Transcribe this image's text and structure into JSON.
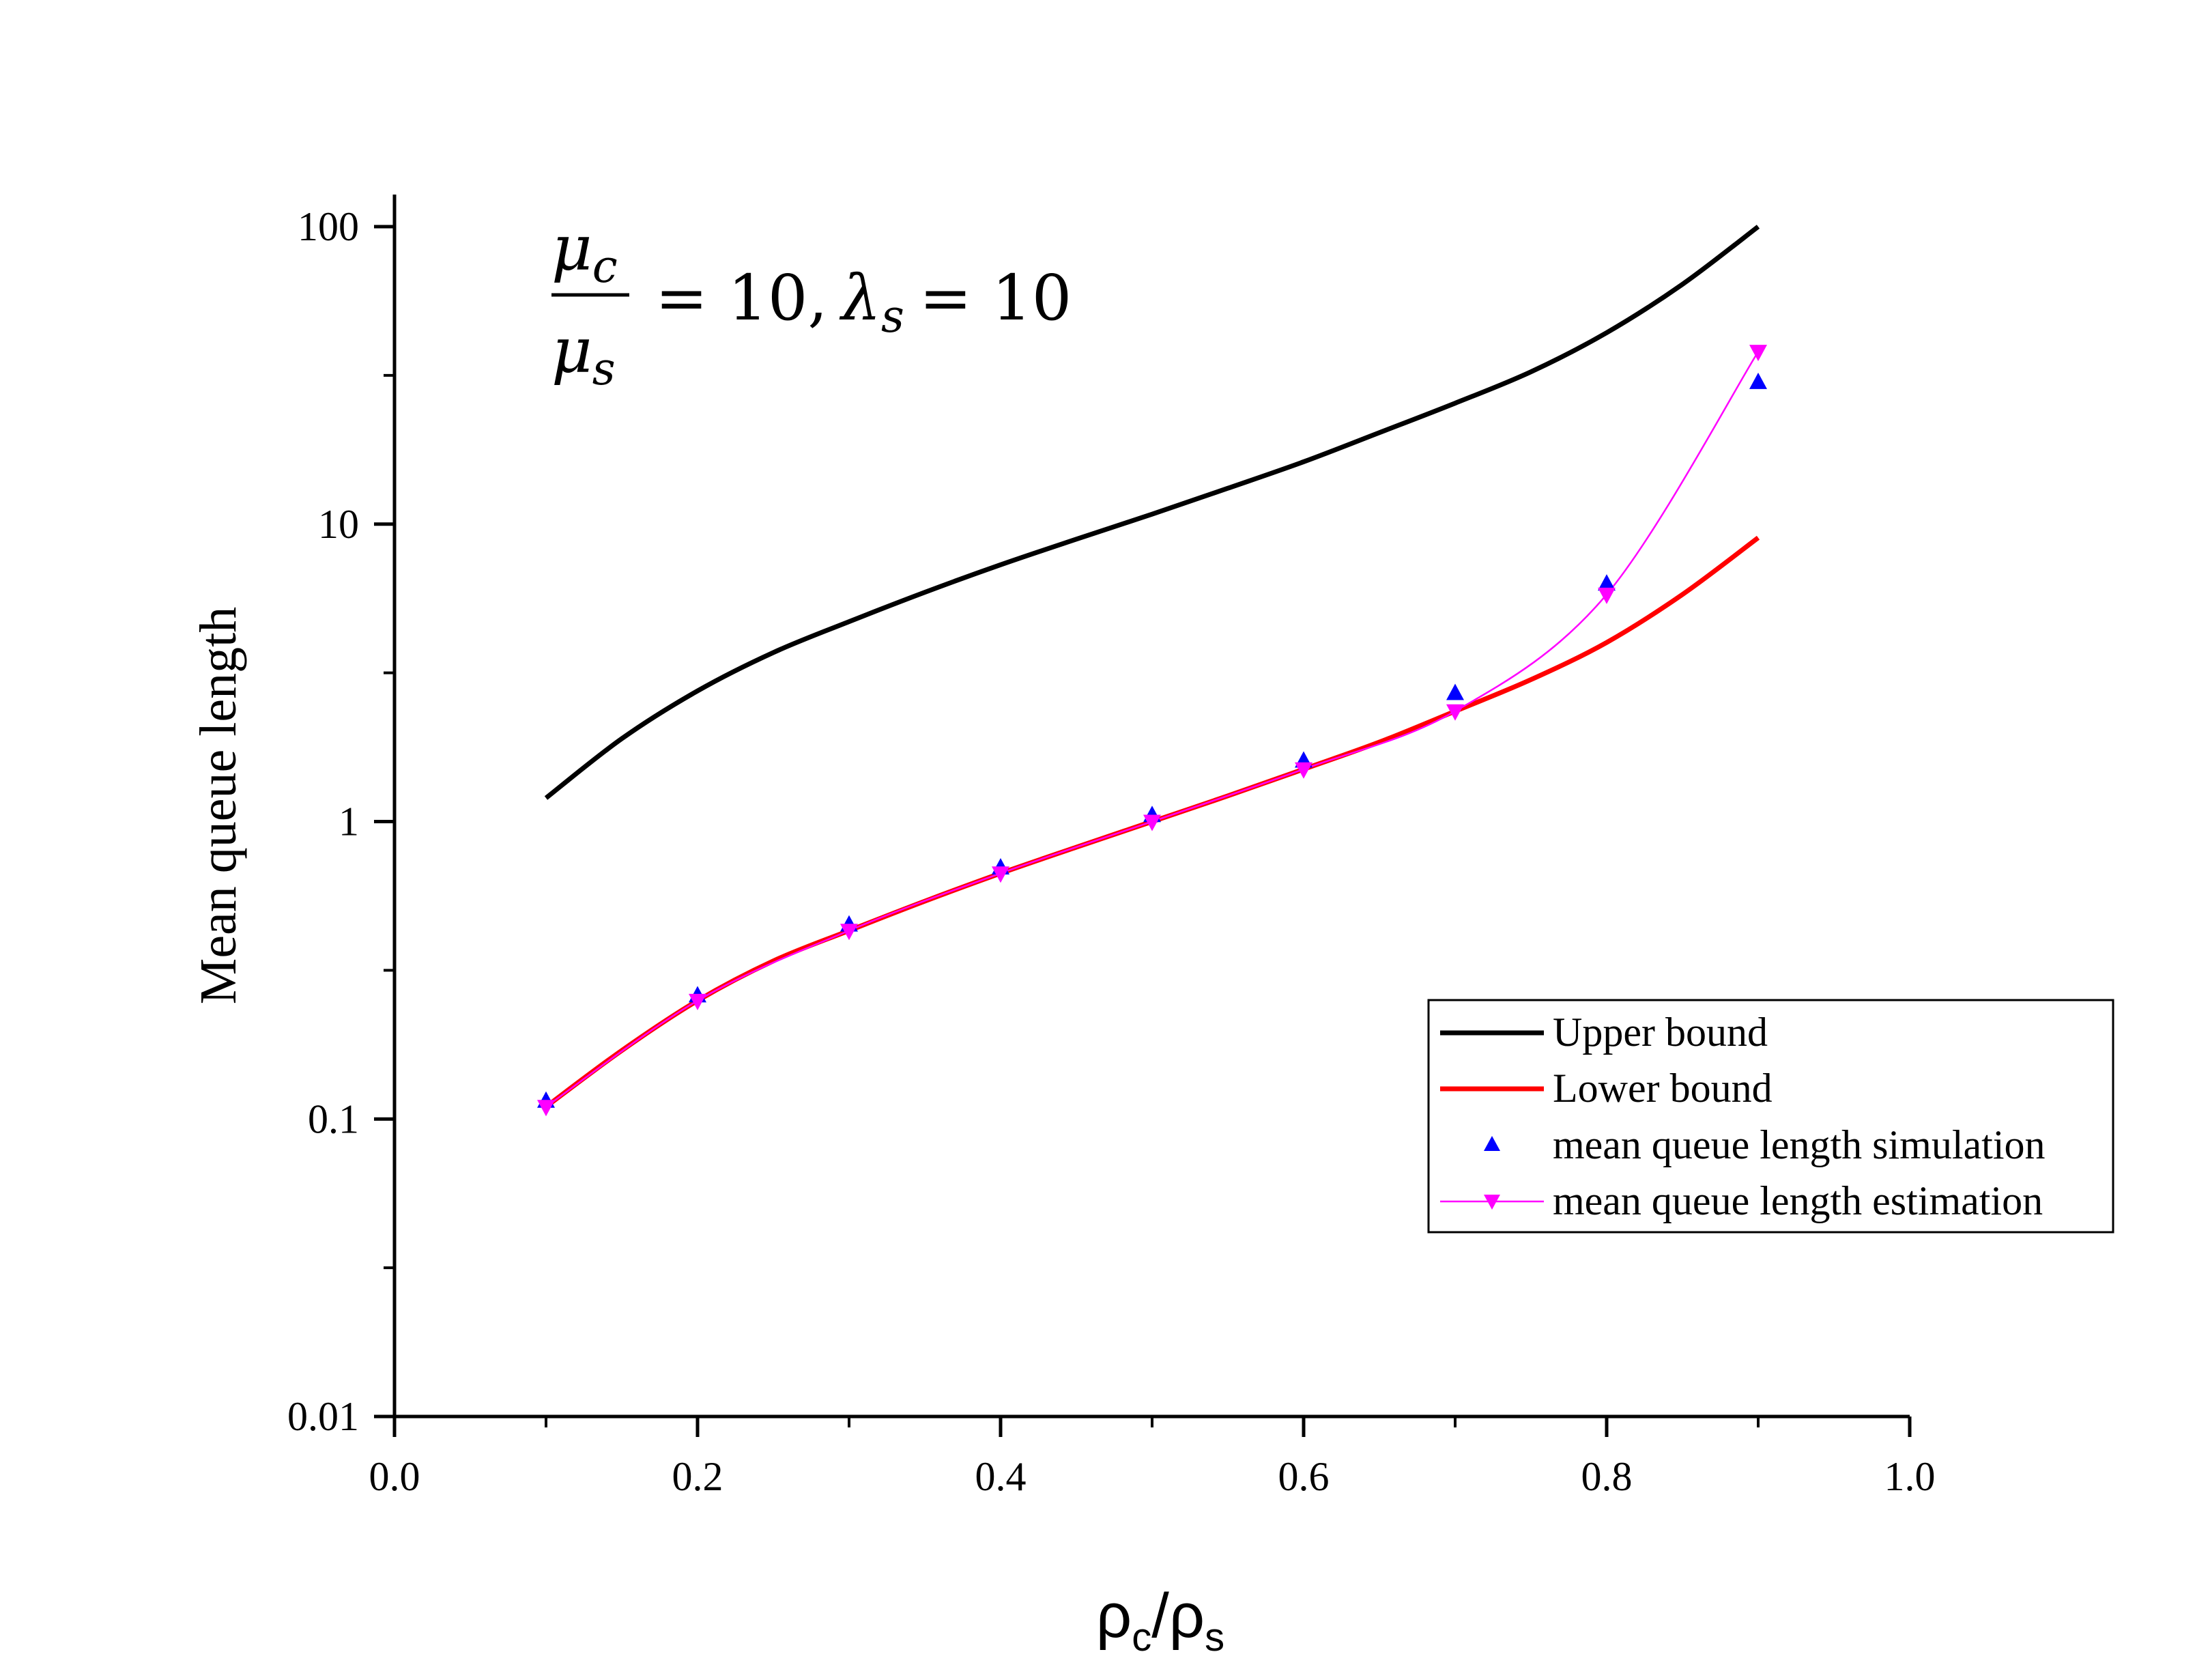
{
  "chart_data": {
    "type": "line",
    "title": "",
    "xlabel": "ρ",
    "xlabel_parts": [
      "ρ",
      "c",
      "/ρ",
      "s"
    ],
    "ylabel": "Mean queue length",
    "yscale": "log",
    "xlim": [
      0.0,
      1.0
    ],
    "ylim": [
      0.01,
      100
    ],
    "x_ticks": [
      "0.0",
      "0.2",
      "0.4",
      "0.6",
      "0.8",
      "1.0"
    ],
    "x_tick_values": [
      0.0,
      0.2,
      0.4,
      0.6,
      0.8,
      1.0
    ],
    "y_ticks": [
      "0.01",
      "0.1",
      "1",
      "10",
      "100"
    ],
    "y_tick_values": [
      0.01,
      0.1,
      1,
      10,
      100
    ],
    "annotation": {
      "mu": "μ",
      "sub_c": "c",
      "sub_s": "s",
      "eq1": "= 10,",
      "lambda": "λ",
      "sub_s2": "s",
      "eq2": "= 10"
    },
    "legend_position": "bottom-right",
    "series": [
      {
        "name": "Upper bound",
        "style": "line",
        "color": "#000000",
        "x": [
          0.1,
          0.15,
          0.2,
          0.25,
          0.3,
          0.35,
          0.4,
          0.45,
          0.5,
          0.55,
          0.6,
          0.65,
          0.7,
          0.75,
          0.8,
          0.85,
          0.9
        ],
        "y": [
          1.2,
          1.9,
          2.75,
          3.7,
          4.7,
          5.9,
          7.3,
          8.9,
          10.8,
          13.2,
          16.2,
          20.3,
          25.5,
          32.5,
          44,
          64,
          100
        ]
      },
      {
        "name": "Lower bound",
        "style": "line",
        "color": "#ff0000",
        "x": [
          0.1,
          0.15,
          0.2,
          0.25,
          0.3,
          0.35,
          0.4,
          0.45,
          0.5,
          0.55,
          0.6,
          0.65,
          0.7,
          0.75,
          0.8,
          0.85,
          0.9
        ],
        "y": [
          0.11,
          0.17,
          0.25,
          0.34,
          0.43,
          0.54,
          0.67,
          0.82,
          1.0,
          1.22,
          1.5,
          1.85,
          2.35,
          3.0,
          4.0,
          5.8,
          9.0
        ]
      },
      {
        "name": "mean queue length simulation",
        "style": "marker-triangle-up",
        "color": "#0000ff",
        "x": [
          0.1,
          0.2,
          0.3,
          0.4,
          0.5,
          0.6,
          0.7,
          0.8,
          0.9
        ],
        "y": [
          0.115,
          0.26,
          0.45,
          0.7,
          1.05,
          1.6,
          2.7,
          6.3,
          30
        ]
      },
      {
        "name": "mean queue length estimation",
        "style": "line-marker-triangle-down",
        "color": "#ff00ff",
        "x": [
          0.1,
          0.2,
          0.3,
          0.4,
          0.5,
          0.6,
          0.7,
          0.8,
          0.9
        ],
        "y": [
          0.11,
          0.25,
          0.43,
          0.67,
          1.0,
          1.5,
          2.35,
          5.8,
          38
        ]
      }
    ]
  }
}
